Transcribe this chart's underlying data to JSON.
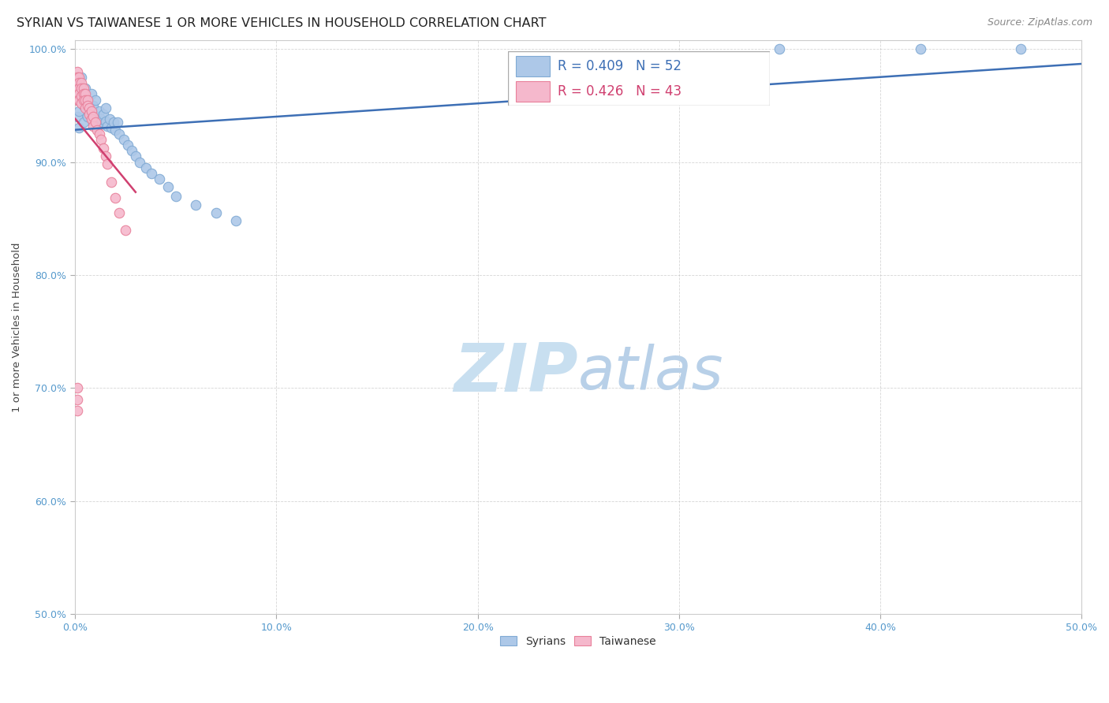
{
  "title": "SYRIAN VS TAIWANESE 1 OR MORE VEHICLES IN HOUSEHOLD CORRELATION CHART",
  "source": "Source: ZipAtlas.com",
  "ylabel": "1 or more Vehicles in Household",
  "xlabel": "",
  "xlim": [
    0.0,
    0.5
  ],
  "ylim": [
    0.5,
    1.008
  ],
  "xtick_labels": [
    "0.0%",
    "10.0%",
    "20.0%",
    "30.0%",
    "40.0%",
    "50.0%"
  ],
  "ytick_labels": [
    "50.0%",
    "60.0%",
    "70.0%",
    "80.0%",
    "90.0%",
    "100.0%"
  ],
  "ytick_values": [
    0.5,
    0.6,
    0.7,
    0.8,
    0.9,
    1.0
  ],
  "xtick_values": [
    0.0,
    0.1,
    0.2,
    0.3,
    0.4,
    0.5
  ],
  "syrian_x": [
    0.001,
    0.001,
    0.001,
    0.002,
    0.002,
    0.002,
    0.003,
    0.003,
    0.004,
    0.004,
    0.005,
    0.005,
    0.006,
    0.006,
    0.007,
    0.008,
    0.008,
    0.009,
    0.009,
    0.01,
    0.01,
    0.011,
    0.011,
    0.012,
    0.012,
    0.013,
    0.014,
    0.015,
    0.015,
    0.016,
    0.017,
    0.018,
    0.019,
    0.02,
    0.021,
    0.022,
    0.024,
    0.026,
    0.028,
    0.03,
    0.032,
    0.035,
    0.038,
    0.042,
    0.046,
    0.05,
    0.06,
    0.07,
    0.08,
    0.35,
    0.42,
    0.47
  ],
  "syrian_y": [
    0.97,
    0.955,
    0.94,
    0.96,
    0.945,
    0.93,
    0.975,
    0.96,
    0.95,
    0.935,
    0.965,
    0.95,
    0.955,
    0.94,
    0.945,
    0.96,
    0.945,
    0.95,
    0.935,
    0.94,
    0.955,
    0.94,
    0.93,
    0.935,
    0.945,
    0.938,
    0.942,
    0.936,
    0.948,
    0.932,
    0.938,
    0.93,
    0.935,
    0.928,
    0.935,
    0.925,
    0.92,
    0.915,
    0.91,
    0.905,
    0.9,
    0.895,
    0.89,
    0.885,
    0.878,
    0.87,
    0.862,
    0.855,
    0.848,
    1.0,
    1.0,
    1.0
  ],
  "taiwanese_x": [
    0.001,
    0.001,
    0.001,
    0.001,
    0.001,
    0.001,
    0.002,
    0.002,
    0.002,
    0.002,
    0.002,
    0.003,
    0.003,
    0.003,
    0.003,
    0.004,
    0.004,
    0.004,
    0.005,
    0.005,
    0.005,
    0.006,
    0.006,
    0.007,
    0.007,
    0.008,
    0.008,
    0.009,
    0.009,
    0.01,
    0.011,
    0.012,
    0.013,
    0.014,
    0.015,
    0.016,
    0.018,
    0.02,
    0.022,
    0.025,
    0.001,
    0.001,
    0.001
  ],
  "taiwanese_y": [
    0.98,
    0.975,
    0.97,
    0.965,
    0.96,
    0.955,
    0.975,
    0.97,
    0.965,
    0.96,
    0.955,
    0.97,
    0.965,
    0.958,
    0.952,
    0.965,
    0.96,
    0.955,
    0.96,
    0.955,
    0.948,
    0.955,
    0.95,
    0.948,
    0.942,
    0.945,
    0.938,
    0.94,
    0.932,
    0.935,
    0.928,
    0.925,
    0.92,
    0.912,
    0.905,
    0.898,
    0.882,
    0.868,
    0.855,
    0.84,
    0.7,
    0.69,
    0.68
  ],
  "syrian_color": "#adc8e8",
  "taiwanese_color": "#f5b8cc",
  "syrian_edge_color": "#80aad4",
  "taiwanese_edge_color": "#e8809a",
  "trend_syrian_color": "#3d6fb5",
  "trend_taiwanese_color": "#d04070",
  "legend_syrian_R": 0.409,
  "legend_syrian_N": 52,
  "legend_taiwanese_R": 0.426,
  "legend_taiwanese_N": 43,
  "watermark_zip": "ZIP",
  "watermark_atlas": "atlas",
  "watermark_color_zip": "#c8dff0",
  "watermark_color_atlas": "#b8d0e8",
  "background_color": "#ffffff",
  "grid_color": "#bbbbbb",
  "title_fontsize": 11.5,
  "axis_label_fontsize": 9.5,
  "tick_fontsize": 9,
  "legend_fontsize": 12,
  "source_fontsize": 9,
  "marker_size": 9
}
